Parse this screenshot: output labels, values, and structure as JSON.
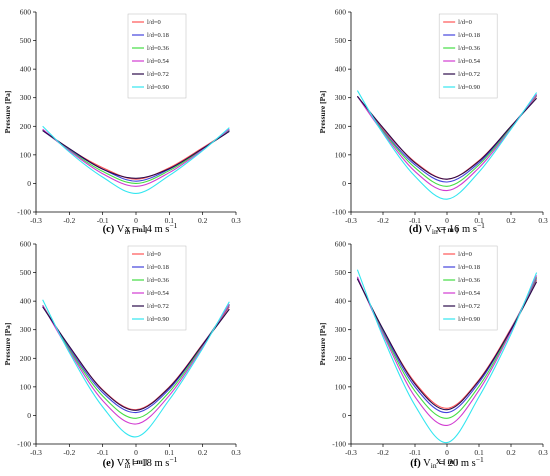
{
  "legend_color_keys": [
    "c0",
    "c18",
    "c36",
    "c54",
    "c72",
    "c90"
  ],
  "colors": {
    "c0": "#ff5555",
    "c18": "#4444dd",
    "c36": "#44dd44",
    "c54": "#d13bd1",
    "c72": "#2a0a4a",
    "c90": "#33e6f0"
  },
  "chart_data": [
    {
      "type": "line",
      "caption_letter": "(c)",
      "caption_text": "V",
      "caption_sub": "in",
      "caption_rest": " = 14 m s",
      "caption_sup": "−1",
      "xlabel": "X [ m ]",
      "ylabel": "Pressure [Pa]",
      "xlim": [
        -0.3,
        0.3
      ],
      "ylim": [
        -100,
        600
      ],
      "xticks": [
        "-0.3",
        "-0.2",
        "-0.1",
        "0",
        "0.1",
        "0.2",
        "0.3"
      ],
      "yticks": [
        "-100",
        "0",
        "100",
        "200",
        "300",
        "400",
        "500",
        "600"
      ],
      "x": [
        -0.28,
        -0.2,
        -0.1,
        0,
        0.1,
        0.2,
        0.28
      ],
      "series": [
        {
          "name": "l/d=0",
          "values": [
            185,
            120,
            55,
            15,
            55,
            125,
            185
          ]
        },
        {
          "name": "l/d=0.18",
          "values": [
            185,
            118,
            50,
            8,
            50,
            122,
            185
          ]
        },
        {
          "name": "l/d=0.36",
          "values": [
            188,
            116,
            42,
            0,
            45,
            120,
            188
          ]
        },
        {
          "name": "l/d=0.54",
          "values": [
            190,
            114,
            34,
            -10,
            38,
            118,
            190
          ]
        },
        {
          "name": "l/d=0.72",
          "values": [
            185,
            122,
            50,
            18,
            52,
            122,
            182
          ]
        },
        {
          "name": "l/d=0.90",
          "values": [
            200,
            110,
            22,
            -35,
            28,
            115,
            195
          ]
        }
      ]
    },
    {
      "type": "line",
      "caption_letter": "(d)",
      "caption_text": "V",
      "caption_sub": "in",
      "caption_rest": " = 16 m s",
      "caption_sup": "−1",
      "xlabel": "X [ m ]",
      "ylabel": "Pressure [Pa]",
      "xlim": [
        -0.3,
        0.3
      ],
      "ylim": [
        -100,
        600
      ],
      "xticks": [
        "-0.3",
        "-0.2",
        "-0.1",
        "0",
        "0.1",
        "0.2",
        "0.3"
      ],
      "yticks": [
        "-100",
        "0",
        "100",
        "200",
        "300",
        "400",
        "500",
        "600"
      ],
      "x": [
        -0.28,
        -0.2,
        -0.1,
        0,
        0.1,
        0.2,
        0.28
      ],
      "series": [
        {
          "name": "l/d=0",
          "values": [
            305,
            190,
            75,
            15,
            80,
            200,
            305
          ]
        },
        {
          "name": "l/d=0.18",
          "values": [
            305,
            185,
            65,
            5,
            72,
            198,
            308
          ]
        },
        {
          "name": "l/d=0.36",
          "values": [
            305,
            182,
            55,
            -10,
            65,
            195,
            310
          ]
        },
        {
          "name": "l/d=0.54",
          "values": [
            305,
            178,
            42,
            -25,
            55,
            192,
            312
          ]
        },
        {
          "name": "l/d=0.72",
          "values": [
            305,
            195,
            72,
            15,
            78,
            200,
            298
          ]
        },
        {
          "name": "l/d=0.90",
          "values": [
            325,
            175,
            25,
            -55,
            40,
            190,
            318
          ]
        }
      ]
    },
    {
      "type": "line",
      "caption_letter": "(e)",
      "caption_text": "V",
      "caption_sub": "in",
      "caption_rest": " = 18 m s",
      "caption_sup": "−1",
      "xlabel": "X [ m ]",
      "ylabel": "Pressure [Pa]",
      "xlim": [
        -0.3,
        0.3
      ],
      "ylim": [
        -100,
        600
      ],
      "xticks": [
        "-0.3",
        "-0.2",
        "-0.1",
        "0",
        "0.1",
        "0.2",
        "0.3"
      ],
      "yticks": [
        "-100",
        "0",
        "100",
        "200",
        "300",
        "400",
        "500",
        "600"
      ],
      "x": [
        -0.28,
        -0.2,
        -0.1,
        0,
        0.1,
        0.2,
        0.28
      ],
      "series": [
        {
          "name": "l/d=0",
          "values": [
            385,
            240,
            90,
            20,
            100,
            250,
            380
          ]
        },
        {
          "name": "l/d=0.18",
          "values": [
            385,
            235,
            80,
            10,
            92,
            248,
            385
          ]
        },
        {
          "name": "l/d=0.36",
          "values": [
            385,
            230,
            68,
            -10,
            82,
            244,
            388
          ]
        },
        {
          "name": "l/d=0.54",
          "values": [
            385,
            225,
            52,
            -30,
            70,
            240,
            390
          ]
        },
        {
          "name": "l/d=0.72",
          "values": [
            380,
            242,
            88,
            18,
            98,
            248,
            372
          ]
        },
        {
          "name": "l/d=0.90",
          "values": [
            405,
            220,
            30,
            -75,
            55,
            235,
            398
          ]
        }
      ]
    },
    {
      "type": "line",
      "caption_letter": "(f)",
      "caption_text": "V",
      "caption_sub": "in",
      "caption_rest": " = 20 m s",
      "caption_sup": "−1",
      "xlabel": "X [ m ]",
      "ylabel": "Pressure [Pa]",
      "xlim": [
        -0.3,
        0.3
      ],
      "ylim": [
        -100,
        600
      ],
      "xticks": [
        "-0.3",
        "-0.2",
        "-0.1",
        "0",
        "0.1",
        "0.2",
        "0.3"
      ],
      "yticks": [
        "-100",
        "0",
        "100",
        "200",
        "300",
        "400",
        "500",
        "600"
      ],
      "x": [
        -0.28,
        -0.2,
        -0.1,
        0,
        0.1,
        0.2,
        0.28
      ],
      "series": [
        {
          "name": "l/d=0",
          "values": [
            480,
            300,
            115,
            25,
            125,
            305,
            475
          ]
        },
        {
          "name": "l/d=0.18",
          "values": [
            480,
            295,
            100,
            10,
            115,
            302,
            480
          ]
        },
        {
          "name": "l/d=0.36",
          "values": [
            482,
            290,
            85,
            -10,
            102,
            298,
            485
          ]
        },
        {
          "name": "l/d=0.54",
          "values": [
            485,
            285,
            65,
            -35,
            88,
            294,
            490
          ]
        },
        {
          "name": "l/d=0.72",
          "values": [
            478,
            302,
            110,
            20,
            122,
            300,
            468
          ]
        },
        {
          "name": "l/d=0.90",
          "values": [
            510,
            275,
            35,
            -95,
            65,
            285,
            500
          ]
        }
      ]
    }
  ]
}
